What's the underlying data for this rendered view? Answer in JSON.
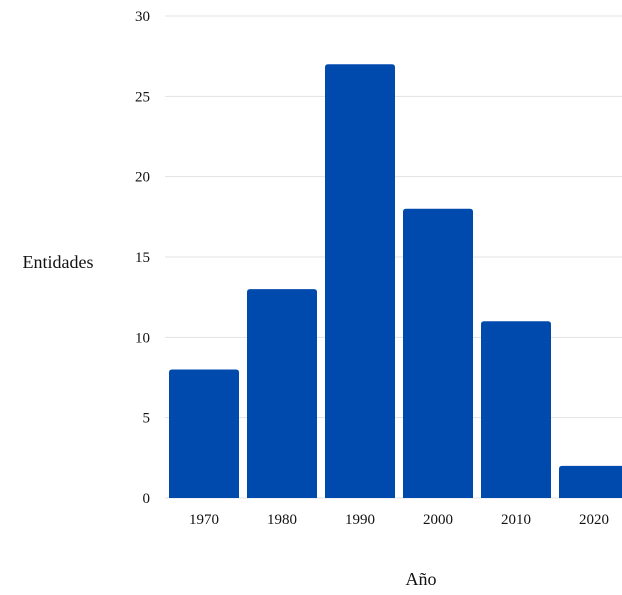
{
  "chart_data": {
    "type": "bar",
    "categories": [
      "1970",
      "1980",
      "1990",
      "2000",
      "2010",
      "2020"
    ],
    "values": [
      8,
      13,
      27,
      18,
      11,
      2
    ],
    "title": "",
    "xlabel": "Año",
    "ylabel": "Entidades",
    "ylim": [
      0,
      30
    ],
    "yticks": [
      0,
      5,
      10,
      15,
      20,
      25,
      30
    ],
    "grid": true,
    "legend": "none",
    "colors": {
      "bar": "#004AAD",
      "grid": "#E3E3E3",
      "text": "#111111"
    }
  }
}
